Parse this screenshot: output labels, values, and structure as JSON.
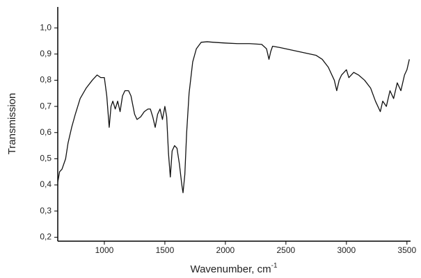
{
  "chart_data": {
    "type": "line",
    "xlabel": {
      "text": "Wavenumber, cm",
      "superscript": "-1"
    },
    "ylabel": "Transmission",
    "xlim": [
      615,
      3530
    ],
    "ylim": [
      0.185,
      1.08
    ],
    "xticks": [
      1000,
      1500,
      2000,
      2500,
      3000,
      3500
    ],
    "yticks": [
      {
        "value": 0.2,
        "label": "0,2"
      },
      {
        "value": 0.3,
        "label": "0,3"
      },
      {
        "value": 0.4,
        "label": "0,4"
      },
      {
        "value": 0.5,
        "label": "0,5"
      },
      {
        "value": 0.6,
        "label": "0,6"
      },
      {
        "value": 0.7,
        "label": "0,7"
      },
      {
        "value": 0.8,
        "label": "0,8"
      },
      {
        "value": 0.9,
        "label": "0,9"
      },
      {
        "value": 1.0,
        "label": "1,0"
      }
    ],
    "grid": false,
    "x": [
      615,
      630,
      650,
      680,
      700,
      730,
      760,
      800,
      850,
      900,
      940,
      970,
      1000,
      1020,
      1040,
      1055,
      1070,
      1090,
      1110,
      1130,
      1150,
      1170,
      1200,
      1220,
      1250,
      1270,
      1300,
      1330,
      1360,
      1380,
      1400,
      1420,
      1440,
      1460,
      1480,
      1500,
      1515,
      1530,
      1545,
      1560,
      1580,
      1600,
      1620,
      1640,
      1650,
      1665,
      1680,
      1700,
      1730,
      1760,
      1800,
      1850,
      1900,
      2000,
      2100,
      2200,
      2300,
      2340,
      2360,
      2375,
      2390,
      2450,
      2550,
      2650,
      2750,
      2800,
      2850,
      2900,
      2920,
      2940,
      2960,
      3000,
      3020,
      3060,
      3100,
      3150,
      3200,
      3240,
      3280,
      3300,
      3330,
      3360,
      3390,
      3420,
      3450,
      3480,
      3500,
      3520
    ],
    "series": [
      {
        "color": "#111111",
        "values": [
          0.41,
          0.45,
          0.46,
          0.5,
          0.56,
          0.62,
          0.67,
          0.73,
          0.77,
          0.8,
          0.82,
          0.81,
          0.81,
          0.74,
          0.62,
          0.7,
          0.72,
          0.69,
          0.72,
          0.68,
          0.74,
          0.76,
          0.76,
          0.74,
          0.67,
          0.65,
          0.66,
          0.68,
          0.69,
          0.69,
          0.66,
          0.62,
          0.67,
          0.69,
          0.65,
          0.7,
          0.66,
          0.52,
          0.43,
          0.53,
          0.55,
          0.54,
          0.48,
          0.4,
          0.37,
          0.44,
          0.6,
          0.75,
          0.87,
          0.92,
          0.945,
          0.947,
          0.945,
          0.942,
          0.94,
          0.94,
          0.937,
          0.92,
          0.88,
          0.91,
          0.93,
          0.925,
          0.915,
          0.905,
          0.895,
          0.88,
          0.85,
          0.8,
          0.76,
          0.8,
          0.82,
          0.84,
          0.81,
          0.83,
          0.82,
          0.8,
          0.77,
          0.72,
          0.68,
          0.72,
          0.7,
          0.76,
          0.73,
          0.79,
          0.76,
          0.82,
          0.84,
          0.88
        ]
      }
    ]
  }
}
